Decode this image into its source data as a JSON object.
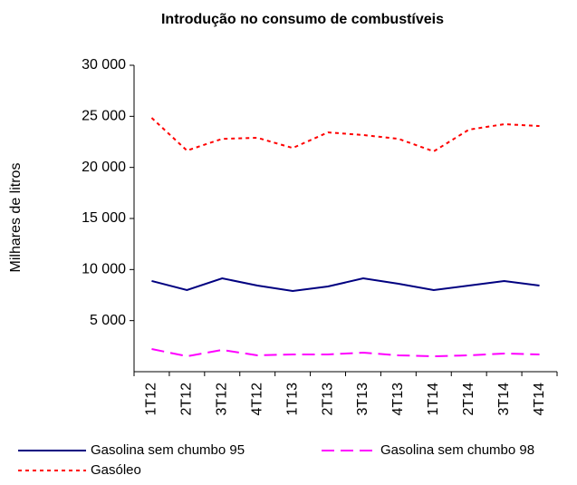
{
  "chart_data": {
    "type": "line",
    "title": "Introdução no consumo de combustíveis",
    "y_label": "Milhares de litros",
    "categories": [
      "1T12",
      "2T12",
      "3T12",
      "4T12",
      "1T13",
      "2T13",
      "3T13",
      "4T13",
      "1T14",
      "2T14",
      "3T14",
      "4T14"
    ],
    "series": [
      {
        "name": "Gasolina sem chumbo 95",
        "color": "#000080",
        "line_style": "solid",
        "values": [
          8880,
          7990,
          9140,
          8430,
          7900,
          8340,
          9140,
          8610,
          7990,
          8430,
          8880,
          8430
        ]
      },
      {
        "name": "Gasolina sem chumbo 98",
        "color": "#ff00ff",
        "line_style": "dashed",
        "values": [
          2220,
          1510,
          2130,
          1600,
          1690,
          1690,
          1860,
          1600,
          1510,
          1600,
          1780,
          1690
        ]
      },
      {
        "name": "Gasóleo",
        "color": "#ff0000",
        "line_style": "dotted",
        "values": [
          24850,
          21650,
          22800,
          22900,
          21900,
          23430,
          23170,
          22800,
          21570,
          23700,
          24230,
          24050
        ]
      }
    ],
    "ylim": [
      0,
      30000
    ],
    "yticks": [
      {
        "value": 5000,
        "label": "5 000"
      },
      {
        "value": 10000,
        "label": "10 000"
      },
      {
        "value": 15000,
        "label": "15 000"
      },
      {
        "value": 20000,
        "label": "20 000"
      },
      {
        "value": 25000,
        "label": "25 000"
      },
      {
        "value": 30000,
        "label": "30 000"
      }
    ],
    "grid": false
  }
}
